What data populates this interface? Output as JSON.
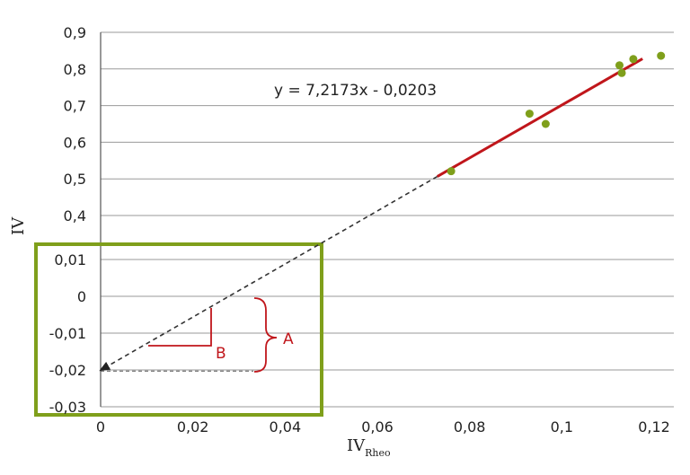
{
  "chart_data": {
    "type": "scatter",
    "xlabel": "IV",
    "xlabel_subscript": "Rheo",
    "ylabel": "IV",
    "xlim": [
      0,
      0.12
    ],
    "ylim_top_panel": [
      0.4,
      0.9
    ],
    "ylim_bottom_panel": [
      -0.03,
      0.01
    ],
    "x_ticks": [
      "0",
      "0,02",
      "0,04",
      "0,06",
      "0,08",
      "0,1",
      "0,12"
    ],
    "y_ticks_top": [
      "0,9",
      "0,8",
      "0,7",
      "0,6",
      "0,5",
      "0,4"
    ],
    "y_ticks_bottom": [
      "0,01",
      "0",
      "-0,01",
      "-0,02",
      "-0,03"
    ],
    "series": [
      {
        "points": [
          {
            "x": 0.076,
            "y": 0.521
          },
          {
            "x": 0.093,
            "y": 0.678
          },
          {
            "x": 0.0965,
            "y": 0.65
          },
          {
            "x": 0.1125,
            "y": 0.81
          },
          {
            "x": 0.113,
            "y": 0.789
          },
          {
            "x": 0.1155,
            "y": 0.827
          },
          {
            "x": 0.1215,
            "y": 0.836
          }
        ]
      }
    ],
    "trendline": {
      "equation": "y = 7,2173x - 0,0203",
      "slope": 7.2173,
      "intercept": -0.0203,
      "fit_x_range": [
        0.073,
        0.1175
      ],
      "extrapolated_to_x": 0
    },
    "annotations": {
      "A": "A",
      "B": "B"
    },
    "colors": {
      "points": "#7f9f1b",
      "fit_line": "#c0161b",
      "extrapolation": "#333333",
      "inset_frame": "#7f9f1b",
      "annotation": "#c0161b"
    },
    "grid": true
  }
}
